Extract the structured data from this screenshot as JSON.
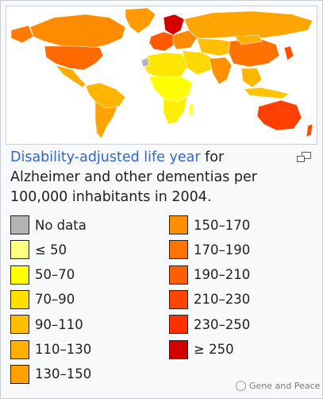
{
  "map": {
    "ocean_color": "#ffffff",
    "land_nodata_color": "#b4b4b4"
  },
  "caption": {
    "link_text": "Disability-adjusted life year",
    "text": " for Alzheimer and other dementias per 100,000 inhabitants in 2004."
  },
  "enlarge_icon": "magnify-clip-icon",
  "legend": {
    "items": [
      {
        "label": "No data",
        "color": "#b3b3b3"
      },
      {
        "label": "≤ 50",
        "color": "#ffff80"
      },
      {
        "label": "50–70",
        "color": "#ffff00"
      },
      {
        "label": "70–90",
        "color": "#ffdf00"
      },
      {
        "label": "90–110",
        "color": "#ffbf00"
      },
      {
        "label": "110–130",
        "color": "#ffaf00"
      },
      {
        "label": "130–150",
        "color": "#ffa000"
      },
      {
        "label": "150–170",
        "color": "#ff8f00"
      },
      {
        "label": "170–190",
        "color": "#ff7400"
      },
      {
        "label": "190–210",
        "color": "#ff5f00"
      },
      {
        "label": "210–230",
        "color": "#ff4600"
      },
      {
        "label": "230–250",
        "color": "#ff2f00"
      },
      {
        "label": "≥ 250",
        "color": "#d40000"
      }
    ]
  },
  "watermark": {
    "text": "Gene and Peace"
  }
}
